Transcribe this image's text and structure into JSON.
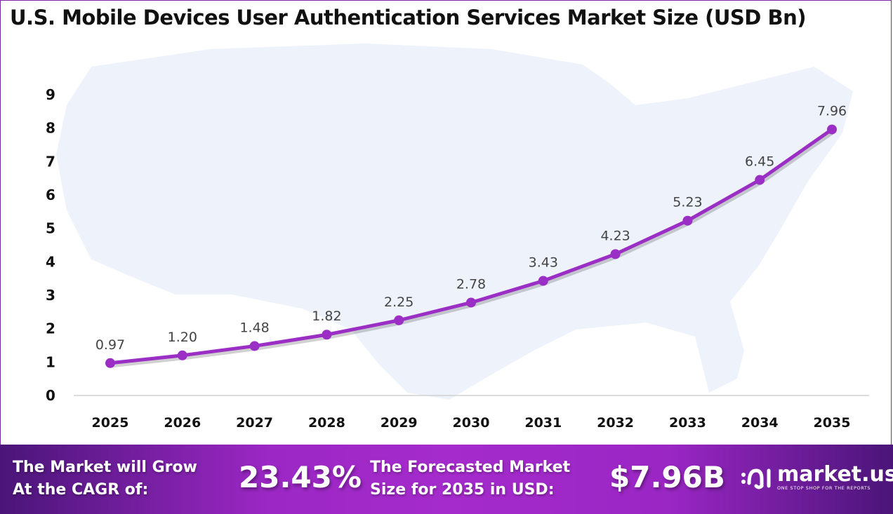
{
  "title": "U.S. Mobile Devices User Authentication Services Market Size (USD Bn)",
  "chart_data": {
    "type": "line",
    "title": "U.S. Mobile Devices User Authentication Services Market Size (USD Bn)",
    "categories": [
      "2025",
      "2026",
      "2027",
      "2028",
      "2029",
      "2030",
      "2031",
      "2032",
      "2033",
      "2034",
      "2035"
    ],
    "values": [
      0.97,
      1.2,
      1.48,
      1.82,
      2.25,
      2.78,
      3.43,
      4.23,
      5.23,
      6.45,
      7.96
    ],
    "data_labels": [
      "0.97",
      "1.20",
      "1.48",
      "1.82",
      "2.25",
      "2.78",
      "3.43",
      "4.23",
      "5.23",
      "6.45",
      "7.96"
    ],
    "yticks": [
      "0",
      "1",
      "2",
      "3",
      "4",
      "5",
      "6",
      "7",
      "8",
      "9"
    ],
    "ylim": [
      0,
      9
    ],
    "grid": false,
    "line_color": "#9b2ec4",
    "background": "US map silhouette, light blue #eef3fb"
  },
  "footer": {
    "cagr_label_1": "The Market will Grow",
    "cagr_label_2": "At the CAGR of:",
    "cagr_value": "23.43%",
    "forecast_label_1": "The Forecasted Market",
    "forecast_label_2": "Size for 2035 in USD:",
    "forecast_value": "$7.96B",
    "logo_name": "market.us",
    "logo_tagline": "ONE STOP SHOP FOR THE REPORTS"
  }
}
